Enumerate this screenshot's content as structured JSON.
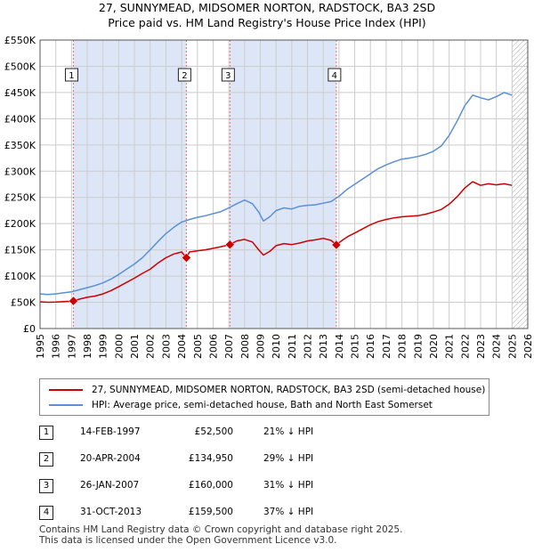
{
  "title": {
    "line1": "27, SUNNYMEAD, MIDSOMER NORTON, RADSTOCK, BA3 2SD",
    "line2": "Price paid vs. HM Land Registry's House Price Index (HPI)"
  },
  "colors": {
    "price_line": "#cc0000",
    "hpi_line": "#5b8fd6",
    "shade": "#dde6f7",
    "grid": "#cccccc",
    "marker_line": "#e07070"
  },
  "chart_data": {
    "type": "line",
    "title": "Price paid vs. HM Land Registry's House Price Index (HPI)",
    "xlabel": "",
    "ylabel": "",
    "xlim": [
      1995,
      2026
    ],
    "ylim": [
      0,
      550000
    ],
    "x_ticks": [
      "1995",
      "1996",
      "1997",
      "1998",
      "1999",
      "2000",
      "2001",
      "2002",
      "2003",
      "2004",
      "2005",
      "2006",
      "2007",
      "2008",
      "2009",
      "2010",
      "2011",
      "2012",
      "2013",
      "2014",
      "2015",
      "2016",
      "2017",
      "2018",
      "2019",
      "2020",
      "2021",
      "2022",
      "2023",
      "2024",
      "2025",
      "2026"
    ],
    "y_ticks": [
      {
        "value": 0,
        "label": "£0"
      },
      {
        "value": 50000,
        "label": "£50K"
      },
      {
        "value": 100000,
        "label": "£100K"
      },
      {
        "value": 150000,
        "label": "£150K"
      },
      {
        "value": 200000,
        "label": "£200K"
      },
      {
        "value": 250000,
        "label": "£250K"
      },
      {
        "value": 300000,
        "label": "£300K"
      },
      {
        "value": 350000,
        "label": "£350K"
      },
      {
        "value": 400000,
        "label": "£400K"
      },
      {
        "value": 450000,
        "label": "£450K"
      },
      {
        "value": 500000,
        "label": "£500K"
      },
      {
        "value": 550000,
        "label": "£550K"
      }
    ],
    "shaded_ranges": [
      [
        1997.12,
        2004.3
      ],
      [
        2007.07,
        2013.83
      ]
    ],
    "hatch_from": 2025.0,
    "series": [
      {
        "name": "27, SUNNYMEAD, MIDSOMER NORTON, RADSTOCK, BA3 2SD (semi-detached house)",
        "x": [
          1995.0,
          1995.5,
          1996.0,
          1996.5,
          1997.12,
          1997.5,
          1998.0,
          1998.5,
          1999.0,
          1999.5,
          2000.0,
          2000.5,
          2001.0,
          2001.5,
          2002.0,
          2002.5,
          2003.0,
          2003.5,
          2004.0,
          2004.3,
          2004.5,
          2005.0,
          2005.5,
          2006.0,
          2006.5,
          2007.07,
          2007.5,
          2008.0,
          2008.5,
          2008.9,
          2009.2,
          2009.6,
          2010.0,
          2010.5,
          2011.0,
          2011.5,
          2012.0,
          2012.5,
          2013.0,
          2013.5,
          2013.83,
          2014.2,
          2014.6,
          2015.0,
          2015.5,
          2016.0,
          2016.5,
          2017.0,
          2017.5,
          2018.0,
          2018.5,
          2019.0,
          2019.5,
          2020.0,
          2020.5,
          2021.0,
          2021.5,
          2022.0,
          2022.5,
          2023.0,
          2023.5,
          2024.0,
          2024.5,
          2025.0
        ],
        "y": [
          51000,
          50000,
          50500,
          51500,
          52500,
          56000,
          59500,
          62000,
          66000,
          72000,
          80000,
          88000,
          96000,
          105000,
          113000,
          125000,
          135000,
          142000,
          146000,
          134950,
          146000,
          148000,
          150000,
          153000,
          156000,
          160000,
          167000,
          170000,
          165000,
          150000,
          140000,
          147000,
          158000,
          162000,
          160000,
          163000,
          167000,
          169000,
          172000,
          168000,
          159500,
          168000,
          176000,
          182000,
          190000,
          198000,
          204000,
          208000,
          211000,
          213000,
          214000,
          215000,
          218000,
          222000,
          227000,
          237000,
          251000,
          268000,
          280000,
          273000,
          276000,
          274000,
          276000,
          273000
        ]
      },
      {
        "name": "HPI: Average price, semi-detached house, Bath and North East Somerset",
        "x": [
          1995.0,
          1995.5,
          1996.0,
          1996.5,
          1997.0,
          1997.5,
          1998.0,
          1998.5,
          1999.0,
          1999.5,
          2000.0,
          2000.5,
          2001.0,
          2001.5,
          2002.0,
          2002.5,
          2003.0,
          2003.5,
          2004.0,
          2004.5,
          2005.0,
          2005.5,
          2006.0,
          2006.5,
          2007.0,
          2007.5,
          2008.0,
          2008.5,
          2008.9,
          2009.2,
          2009.6,
          2010.0,
          2010.5,
          2011.0,
          2011.5,
          2012.0,
          2012.5,
          2013.0,
          2013.5,
          2014.0,
          2014.5,
          2015.0,
          2015.5,
          2016.0,
          2016.5,
          2017.0,
          2017.5,
          2018.0,
          2018.5,
          2019.0,
          2019.5,
          2020.0,
          2020.5,
          2021.0,
          2021.5,
          2022.0,
          2022.5,
          2023.0,
          2023.5,
          2024.0,
          2024.5,
          2025.0
        ],
        "y": [
          66000,
          65000,
          66000,
          68000,
          70000,
          74000,
          78000,
          82000,
          87000,
          94000,
          103000,
          113000,
          123000,
          135000,
          150000,
          166000,
          181000,
          193000,
          203000,
          208000,
          212000,
          215000,
          219000,
          223000,
          230000,
          238000,
          245000,
          238000,
          222000,
          205000,
          213000,
          225000,
          230000,
          228000,
          233000,
          235000,
          236000,
          239000,
          242000,
          252000,
          265000,
          275000,
          285000,
          295000,
          305000,
          312000,
          318000,
          323000,
          325000,
          328000,
          332000,
          338000,
          348000,
          368000,
          395000,
          425000,
          445000,
          440000,
          436000,
          442000,
          450000,
          445000
        ]
      }
    ],
    "markers": [
      {
        "label": "1",
        "x": 1997.12,
        "y": 52500
      },
      {
        "label": "2",
        "x": 2004.3,
        "y": 134950
      },
      {
        "label": "3",
        "x": 2007.07,
        "y": 160000
      },
      {
        "label": "4",
        "x": 2013.83,
        "y": 159500
      }
    ]
  },
  "legend": {
    "price_label": "27, SUNNYMEAD, MIDSOMER NORTON, RADSTOCK, BA3 2SD (semi-detached house)",
    "hpi_label": "HPI: Average price, semi-detached house, Bath and North East Somerset"
  },
  "transactions": [
    {
      "num": "1",
      "date": "14-FEB-1997",
      "price": "£52,500",
      "hpi": "21% ↓ HPI"
    },
    {
      "num": "2",
      "date": "20-APR-2004",
      "price": "£134,950",
      "hpi": "29% ↓ HPI"
    },
    {
      "num": "3",
      "date": "26-JAN-2007",
      "price": "£160,000",
      "hpi": "31% ↓ HPI"
    },
    {
      "num": "4",
      "date": "31-OCT-2013",
      "price": "£159,500",
      "hpi": "37% ↓ HPI"
    }
  ],
  "footer": {
    "line1": "Contains HM Land Registry data © Crown copyright and database right 2025.",
    "line2": "This data is licensed under the Open Government Licence v3.0."
  }
}
